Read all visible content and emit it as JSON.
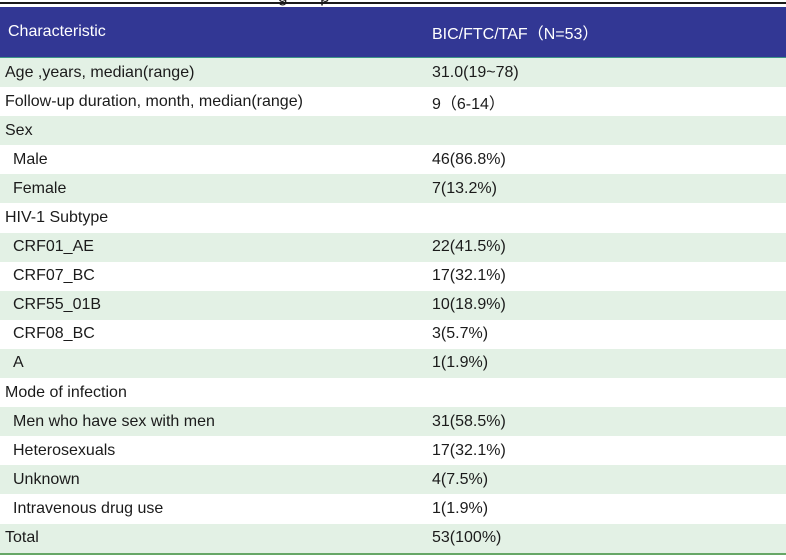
{
  "page": {
    "cropped_title_fragment": "g p"
  },
  "table": {
    "columns": [
      "Characteristic",
      "BIC/FTC/TAF（N=53）"
    ],
    "rows": [
      {
        "label": "Age ,years, median(range)",
        "value": "31.0(19~78)",
        "indent": false
      },
      {
        "label": "Follow-up duration, month, median(range)",
        "value": "9（6-14）",
        "indent": false
      },
      {
        "label": "Sex",
        "value": "",
        "indent": false
      },
      {
        "label": "Male",
        "value": "46(86.8%)",
        "indent": true
      },
      {
        "label": "Female",
        "value": "7(13.2%)",
        "indent": true
      },
      {
        "label": "HIV-1 Subtype",
        "value": "",
        "indent": false
      },
      {
        "label": "CRF01_AE",
        "value": "22(41.5%)",
        "indent": true
      },
      {
        "label": "CRF07_BC",
        "value": "17(32.1%)",
        "indent": true
      },
      {
        "label": "CRF55_01B",
        "value": "10(18.9%)",
        "indent": true
      },
      {
        "label": "CRF08_BC",
        "value": "3(5.7%)",
        "indent": true
      },
      {
        "label": "A",
        "value": "1(1.9%)",
        "indent": true
      },
      {
        "label": "Mode of infection",
        "value": "",
        "indent": false
      },
      {
        "label": "Men who have sex with men",
        "value": "31(58.5%)",
        "indent": true
      },
      {
        "label": "Heterosexuals",
        "value": "17(32.1%)",
        "indent": true
      },
      {
        "label": "Unknown",
        "value": "4(7.5%)",
        "indent": true
      },
      {
        "label": "Intravenous drug use",
        "value": "1(1.9%)",
        "indent": true
      },
      {
        "label": "Total",
        "value": "53(100%)",
        "indent": false
      }
    ],
    "colors": {
      "header_bg": "#323794",
      "header_text": "#ffffff",
      "row_alt_bg": "#e3f1e5",
      "row_bg": "#ffffff",
      "top_rule": "#1a1a1a",
      "bottom_rule": "#66a766",
      "body_text": "#1b1b1b"
    }
  }
}
